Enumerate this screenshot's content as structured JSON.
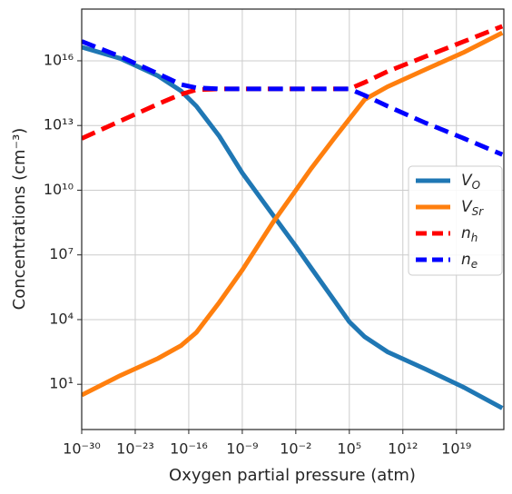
{
  "chart_data": {
    "type": "line",
    "xlabel": "Oxygen partial pressure (atm)",
    "ylabel": "Concentrations (cm⁻³)",
    "log_x": true,
    "log_y": true,
    "grid": true,
    "legend": "right",
    "x": [
      1e-30,
      1e-25,
      1e-20,
      1e-17,
      1e-15,
      1e-12,
      1e-09,
      1e-05,
      0.01,
      1,
      1000.0,
      100000.0,
      10000000.0,
      10000000000.0,
      1000000000000000.0,
      1e+20,
      1e+25
    ],
    "series": [
      {
        "name": "VO",
        "color": "#1f77b4",
        "dash": false,
        "values": [
          4.3e+16,
          1.3e+16,
          2000000000000000.0,
          400000000000000.0,
          79000000000000.0,
          3200000000000.0,
          63000000000.0,
          710000000.0,
          25000000.0,
          2500000.0,
          79000.0,
          7900.0,
          1600.0,
          320,
          50,
          7.1,
          0.79
        ]
      },
      {
        "name": "VSr",
        "color": "#ff7f0e",
        "dash": false,
        "values": [
          3.2,
          25,
          160,
          630,
          2500,
          63000.0,
          2000000.0,
          320000000.0,
          10000000000.0,
          100000000000.0,
          2500000000000.0,
          20000000000000.0,
          160000000000000.0,
          630000000000000.0,
          4000000000000000.0,
          2.5e+16,
          2e+17
        ]
      },
      {
        "name": "nh",
        "color": "#ff0000",
        "dash": true,
        "values": [
          2500000000000.0,
          16000000000000.0,
          100000000000000.0,
          280000000000000.0,
          450000000000000.0,
          500000000000000.0,
          500000000000000.0,
          500000000000000.0,
          500000000000000.0,
          500000000000000.0,
          500000000000000.0,
          500000000000000.0,
          1000000000000000.0,
          3200000000000000.0,
          1.6e+16,
          7.9e+16,
          4e+17
        ]
      },
      {
        "name": "ne",
        "color": "#0000ff",
        "dash": true,
        "values": [
          7.9e+16,
          1.6e+16,
          2500000000000000.0,
          790000000000000.0,
          560000000000000.0,
          500000000000000.0,
          500000000000000.0,
          500000000000000.0,
          500000000000000.0,
          500000000000000.0,
          500000000000000.0,
          500000000000000.0,
          250000000000000.0,
          79000000000000.0,
          13000000000000.0,
          2500000000000.0,
          450000000000.0
        ]
      }
    ],
    "xlim": [
      1e-30,
      1.6e+25
    ],
    "ylim": [
      0.08,
      2.5e+18
    ],
    "xticks": [
      {
        "value": 1e-30,
        "label": "10⁻³⁰"
      },
      {
        "value": 1e-23,
        "label": "10⁻²³"
      },
      {
        "value": 1e-16,
        "label": "10⁻¹⁶"
      },
      {
        "value": 1e-09,
        "label": "10⁻⁹"
      },
      {
        "value": 0.01,
        "label": "10⁻²"
      },
      {
        "value": 100000.0,
        "label": "10⁵"
      },
      {
        "value": 1000000000000.0,
        "label": "10¹²"
      },
      {
        "value": 1e+19,
        "label": "10¹⁹"
      }
    ],
    "yticks": [
      {
        "value": 10,
        "label": "10¹"
      },
      {
        "value": 10000.0,
        "label": "10⁴"
      },
      {
        "value": 10000000.0,
        "label": "10⁷"
      },
      {
        "value": 10000000000.0,
        "label": "10¹⁰"
      },
      {
        "value": 10000000000000.0,
        "label": "10¹³"
      },
      {
        "value": 1e+16,
        "label": "10¹⁶"
      }
    ]
  }
}
